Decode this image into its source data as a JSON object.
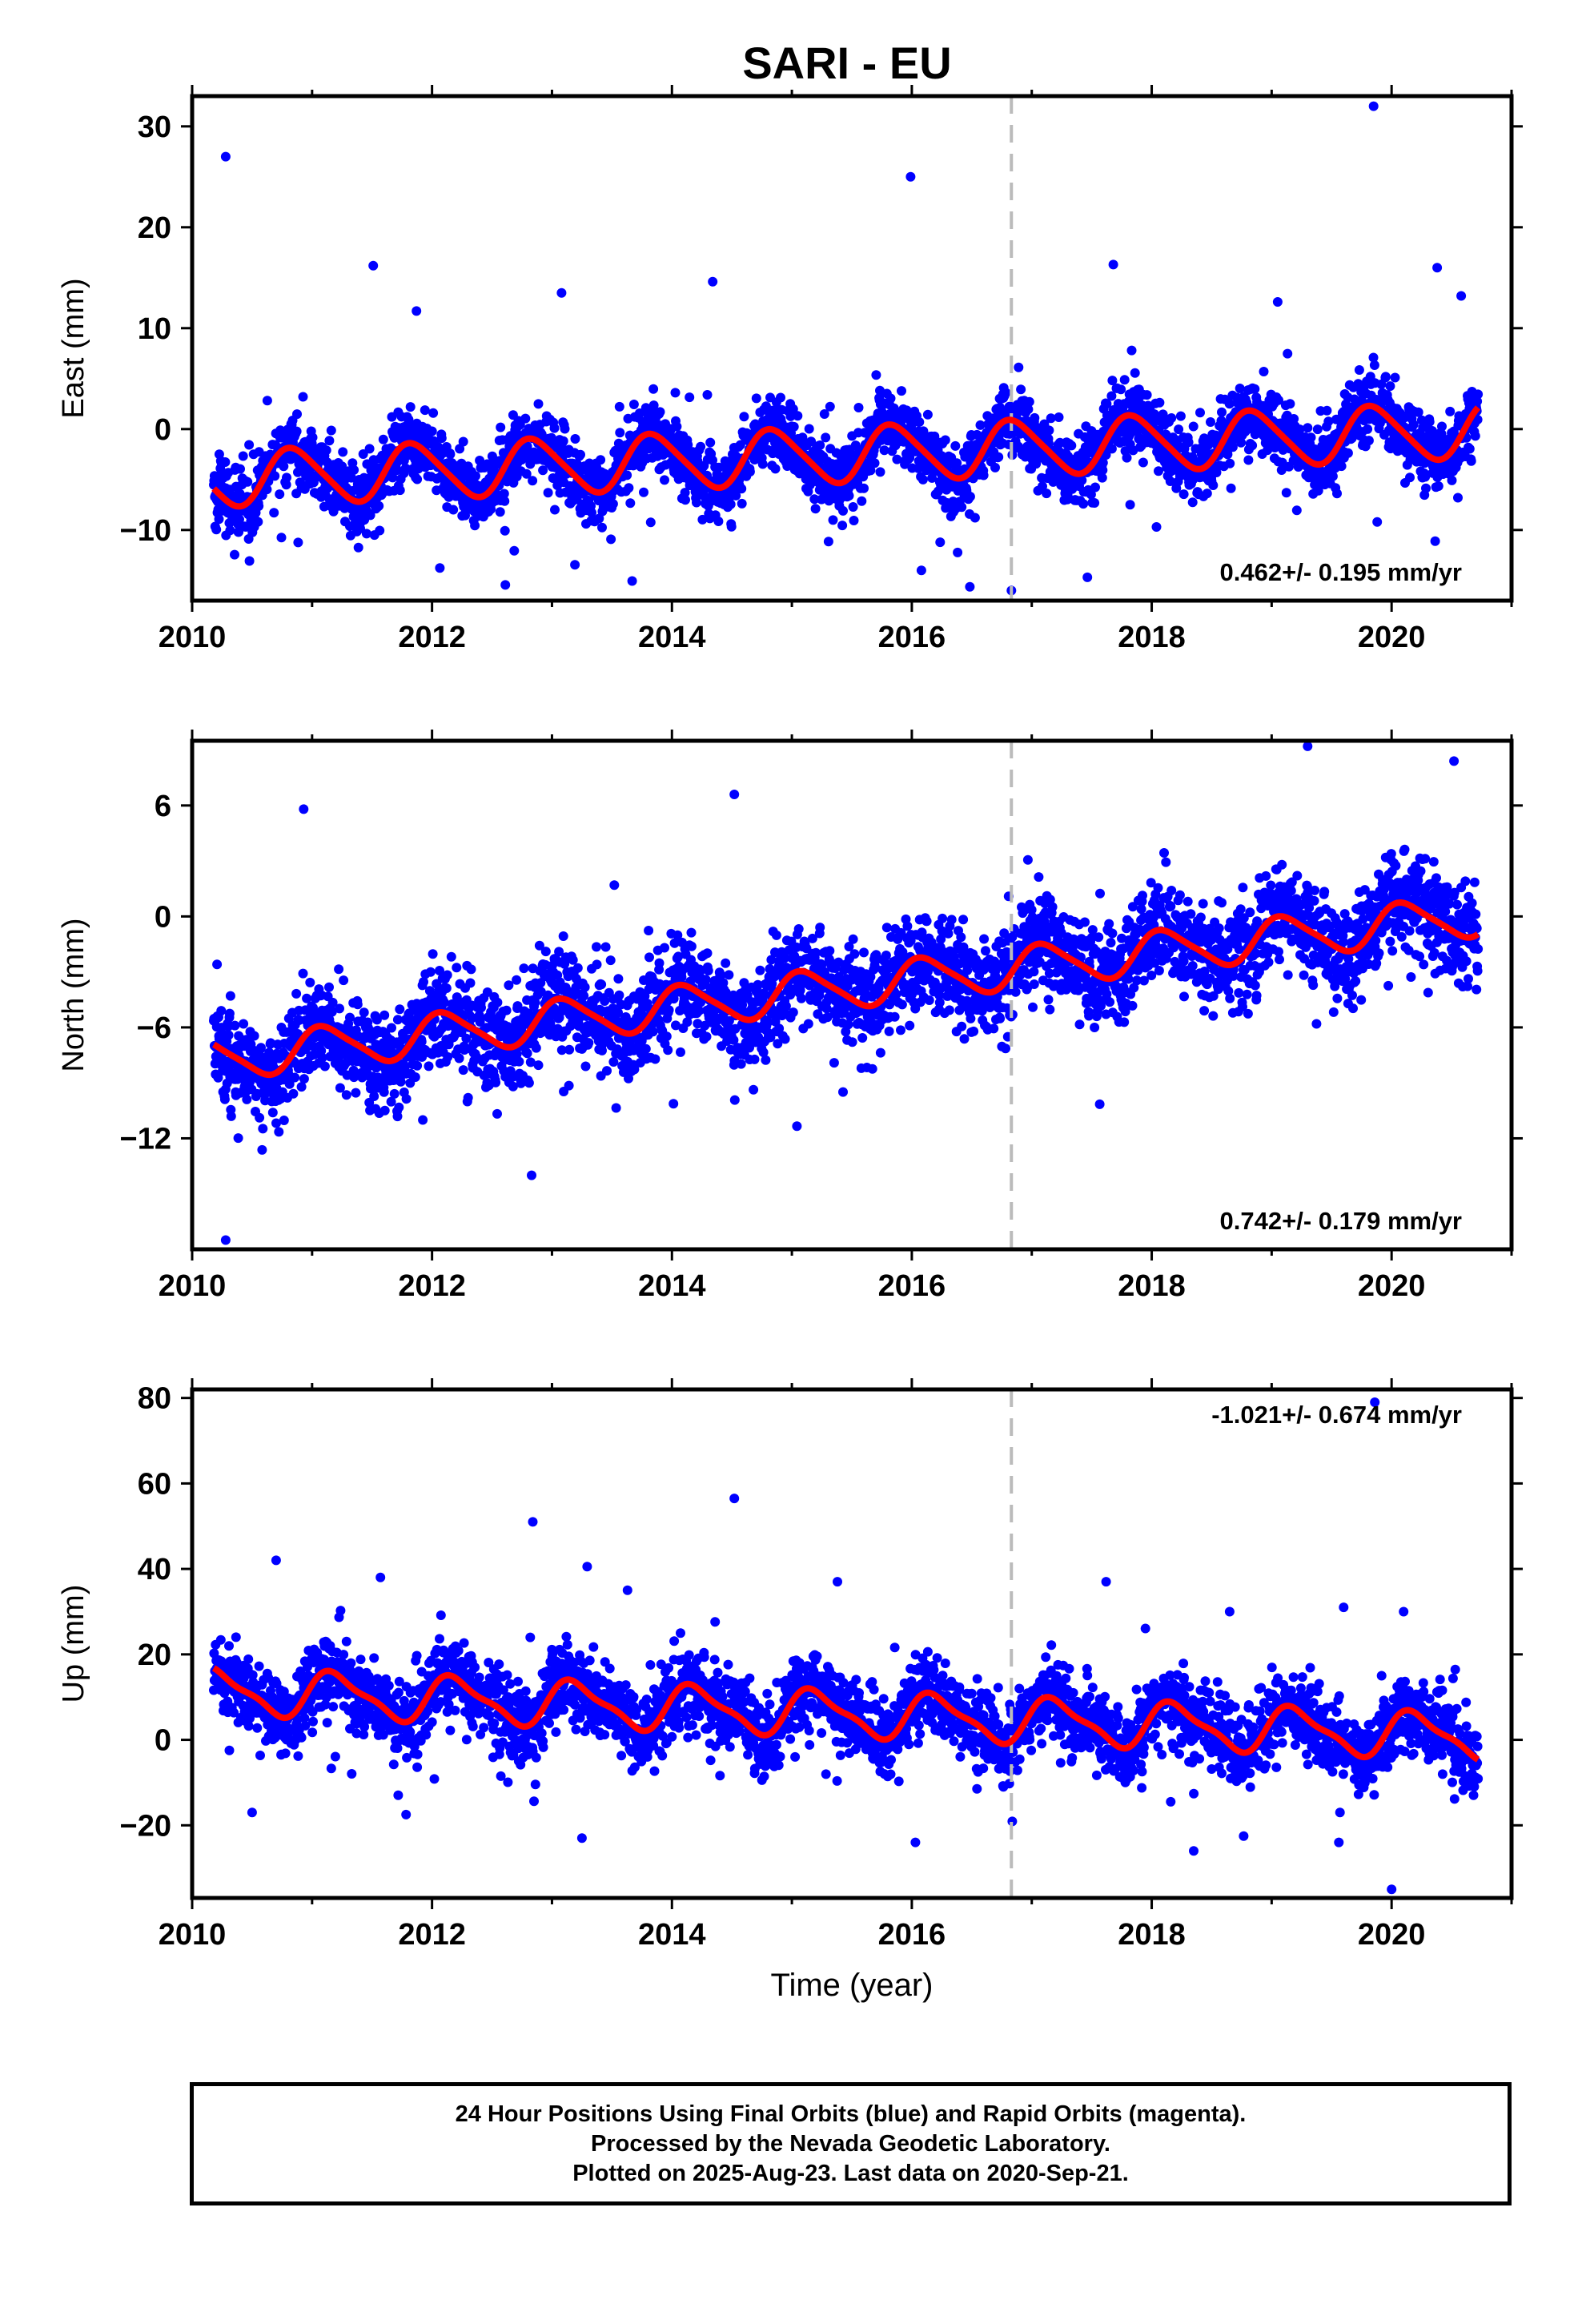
{
  "title": "SARI - EU",
  "footer": {
    "line1": "24 Hour Positions Using Final Orbits (blue) and Rapid Orbits (magenta).",
    "line2": "Processed by the Nevada Geodetic Laboratory.",
    "line3": "Plotted on 2025-Aug-23. Last data on 2020-Sep-21."
  },
  "colors": {
    "final_orbits": "#0000ff",
    "model": "#ff0000",
    "break_line": "#bbbbbb"
  },
  "chart_data": [
    {
      "type": "scatter",
      "component": "east",
      "ylabel": "East (mm)",
      "xlabel": "",
      "xlim": [
        2010,
        2021
      ],
      "ylim": [
        -17,
        33
      ],
      "xticks": [
        2010,
        2012,
        2014,
        2016,
        2018,
        2020
      ],
      "yticks": [
        -10,
        0,
        10,
        20,
        30
      ],
      "rate_label": "0.462+/- 0.195 mm/yr",
      "data_start": 2010.18,
      "data_end": 2020.72,
      "equipment_change": 2016.83,
      "model": {
        "intercept": -2.5,
        "trend_mm_per_yr": 0.462,
        "annual_amplitude": 2.7,
        "annual_phase": 2.5,
        "semiannual_amplitude": 0.4,
        "noise_sd": 1.7
      },
      "outliers": [
        [
          2010.28,
          27
        ],
        [
          2015.99,
          25
        ],
        [
          2019.85,
          32
        ],
        [
          2016.83,
          -16
        ],
        [
          2016.08,
          -14
        ],
        [
          2011.51,
          16.2
        ],
        [
          2017.68,
          16.3
        ],
        [
          2020.38,
          16
        ],
        [
          2014.34,
          14.6
        ],
        [
          2013.08,
          13.5
        ],
        [
          2011.87,
          11.7
        ],
        [
          2019.05,
          12.6
        ],
        [
          2020.58,
          13.2
        ],
        [
          2017.82,
          -7.5
        ],
        [
          2018.04,
          -9.7
        ],
        [
          2019.88,
          -9.2
        ],
        [
          2011.52,
          -10.5
        ]
      ]
    },
    {
      "type": "scatter",
      "component": "north",
      "ylabel": "North (mm)",
      "xlabel": "",
      "xlim": [
        2010,
        2021
      ],
      "ylim": [
        -18,
        9.5
      ],
      "xticks": [
        2010,
        2012,
        2014,
        2016,
        2018,
        2020
      ],
      "yticks": [
        -12,
        -6,
        0,
        6
      ],
      "rate_label": "0.742+/- 0.179 mm/yr",
      "data_start": 2010.18,
      "data_end": 2020.72,
      "equipment_change": 2016.83,
      "model": {
        "intercept": -3.8,
        "trend_mm_per_yr": 0.742,
        "annual_amplitude": 1.1,
        "annual_phase": 0.9,
        "semiannual_amplitude": 0.2,
        "noise_sd": 1.3
      },
      "outliers": [
        [
          2010.28,
          -17.5
        ],
        [
          2012.83,
          -14
        ],
        [
          2012.73,
          -8.5
        ],
        [
          2010.93,
          5.8
        ],
        [
          2014.52,
          6.6
        ],
        [
          2019.3,
          9.2
        ],
        [
          2020.52,
          8.4
        ],
        [
          2017.58,
          -4.6
        ],
        [
          2013.38,
          -6
        ]
      ]
    },
    {
      "type": "scatter",
      "component": "up",
      "ylabel": "Up (mm)",
      "xlabel": "Time (year)",
      "xlim": [
        2010,
        2021
      ],
      "ylim": [
        -37,
        82
      ],
      "xticks": [
        2010,
        2012,
        2014,
        2016,
        2018,
        2020
      ],
      "yticks": [
        -20,
        0,
        20,
        40,
        60,
        80
      ],
      "rate_label": "-1.021+/- 0.674 mm/yr",
      "data_start": 2010.18,
      "data_end": 2020.72,
      "equipment_change": 2016.83,
      "model": {
        "intercept": 6,
        "trend_mm_per_yr": -1.021,
        "annual_amplitude": 5,
        "annual_phase": 0.3,
        "semiannual_amplitude": 1.5,
        "noise_sd": 4.5
      },
      "outliers": [
        [
          2014.52,
          56.5
        ],
        [
          2012.84,
          51
        ],
        [
          2010.7,
          42
        ],
        [
          2019.86,
          79
        ],
        [
          2020.0,
          -35
        ],
        [
          2010.5,
          -17
        ],
        [
          2013.25,
          -23
        ],
        [
          2016.03,
          -24
        ],
        [
          2018.35,
          -26
        ],
        [
          2019.56,
          -24
        ],
        [
          2011.57,
          38
        ],
        [
          2013.63,
          35
        ],
        [
          2015.38,
          37
        ],
        [
          2017.62,
          37
        ],
        [
          2018.65,
          30
        ],
        [
          2019.6,
          31
        ],
        [
          2020.1,
          30
        ]
      ]
    }
  ]
}
